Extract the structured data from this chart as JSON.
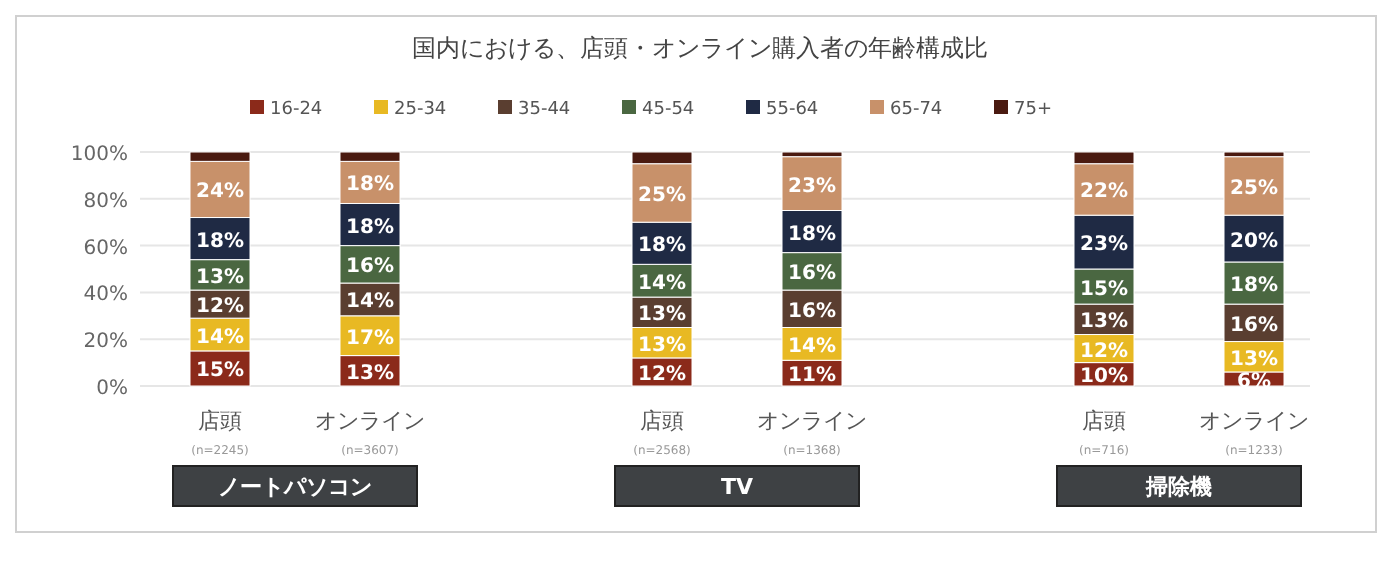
{
  "chart_data": {
    "type": "bar",
    "stacked": true,
    "title": "国内における、店頭・オンライン購入者の年齢構成比",
    "categories": [
      "店頭\n(n=2245)",
      "オンライン\n(n=3607)",
      "店頭\n(n=2568)",
      "オンライン\n(n=1368)",
      "店頭\n(n=716)",
      "オンライン\n(n=1233)"
    ],
    "annotations": [
      "ノートパソコン",
      "TV",
      "掃除機"
    ],
    "ylim": [
      0,
      100
    ],
    "yticks": [
      {
        "value": 0,
        "label": "0%"
      },
      {
        "value": 20,
        "label": "20%"
      },
      {
        "value": 40,
        "label": "40%"
      },
      {
        "value": 60,
        "label": "60%"
      },
      {
        "value": 80,
        "label": "80%"
      },
      {
        "value": 100,
        "label": "100%"
      }
    ],
    "grid": "y",
    "legend": "top",
    "series": [
      {
        "name": "16-24",
        "color": "#8b2a1a",
        "values": [
          15,
          13,
          12,
          11,
          10,
          6
        ],
        "value_labels": [
          "15%",
          "13%",
          "12%",
          "11%",
          "10%",
          "6%"
        ]
      },
      {
        "name": "25-34",
        "color": "#e8b923",
        "values": [
          14,
          17,
          13,
          14,
          12,
          13
        ],
        "value_labels": [
          "14%",
          "17%",
          "13%",
          "14%",
          "12%",
          "13%"
        ]
      },
      {
        "name": "35-44",
        "color": "#5a3e30",
        "values": [
          12,
          14,
          13,
          16,
          13,
          16
        ],
        "value_labels": [
          "12%",
          "14%",
          "13%",
          "16%",
          "13%",
          "16%"
        ]
      },
      {
        "name": "45-54",
        "color": "#4a6741",
        "values": [
          13,
          16,
          14,
          16,
          15,
          18
        ],
        "value_labels": [
          "13%",
          "16%",
          "14%",
          "16%",
          "15%",
          "18%"
        ]
      },
      {
        "name": "55-64",
        "color": "#1f2a44",
        "values": [
          18,
          18,
          18,
          18,
          23,
          20
        ],
        "value_labels": [
          "18%",
          "18%",
          "18%",
          "18%",
          "23%",
          "20%"
        ]
      },
      {
        "name": "65-74",
        "color": "#c8916a",
        "values": [
          24,
          18,
          25,
          23,
          22,
          25
        ],
        "value_labels": [
          "24%",
          "18%",
          "25%",
          "23%",
          "22%",
          "25%"
        ]
      },
      {
        "name": "75+",
        "color": "#4a1a10",
        "values": [
          4,
          4,
          5,
          2,
          5,
          2
        ],
        "value_labels": [
          null,
          null,
          null,
          null,
          null,
          null
        ]
      }
    ]
  }
}
